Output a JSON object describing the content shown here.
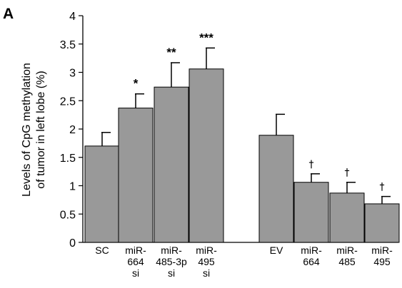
{
  "panel_label": "A",
  "chart_data": {
    "type": "bar",
    "ylabel_lines": [
      "Levels of CpG methylation",
      "of tumor in left lobe (%)"
    ],
    "ylim": [
      0,
      4
    ],
    "yticks": [
      "0",
      "0.5",
      "1",
      "1.5",
      "2",
      "2.5",
      "3",
      "3.5",
      "4"
    ],
    "grid": false,
    "legend": false,
    "bar_color": "#999999",
    "bars": [
      {
        "label_lines": [
          "SC"
        ],
        "value": 1.7,
        "error": 0.24,
        "annotation": ""
      },
      {
        "label_lines": [
          "miR-",
          "664",
          "si"
        ],
        "value": 2.37,
        "error": 0.25,
        "annotation": "*"
      },
      {
        "label_lines": [
          "miR-",
          "485-3p",
          "si"
        ],
        "value": 2.74,
        "error": 0.43,
        "annotation": "**"
      },
      {
        "label_lines": [
          "miR-",
          "495",
          "si"
        ],
        "value": 3.06,
        "error": 0.37,
        "annotation": "***"
      },
      {
        "label_lines": [
          "EV"
        ],
        "value": 1.89,
        "error": 0.37,
        "annotation": ""
      },
      {
        "label_lines": [
          "miR-",
          "664"
        ],
        "value": 1.06,
        "error": 0.15,
        "annotation": "†"
      },
      {
        "label_lines": [
          "miR-",
          "485"
        ],
        "value": 0.87,
        "error": 0.19,
        "annotation": "†"
      },
      {
        "label_lines": [
          "miR-",
          "495"
        ],
        "value": 0.68,
        "error": 0.13,
        "annotation": "†"
      }
    ]
  }
}
